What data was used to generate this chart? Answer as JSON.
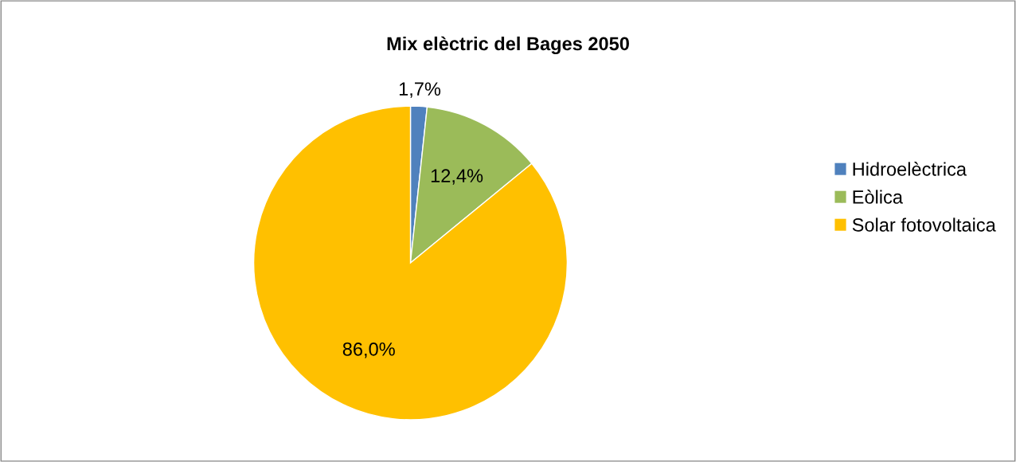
{
  "chart_data": {
    "type": "pie",
    "title": "Mix elèctric del Bages 2050",
    "categories": [
      "Hidroelèctrica",
      "Eòlica",
      "Solar fotovoltaica"
    ],
    "values": [
      1.7,
      12.4,
      86.0
    ],
    "colors": [
      "#4f81bd",
      "#9bbb59",
      "#ffc000"
    ],
    "value_labels": [
      "1,7%",
      "12,4%",
      "86,0%"
    ],
    "legend": "right"
  }
}
